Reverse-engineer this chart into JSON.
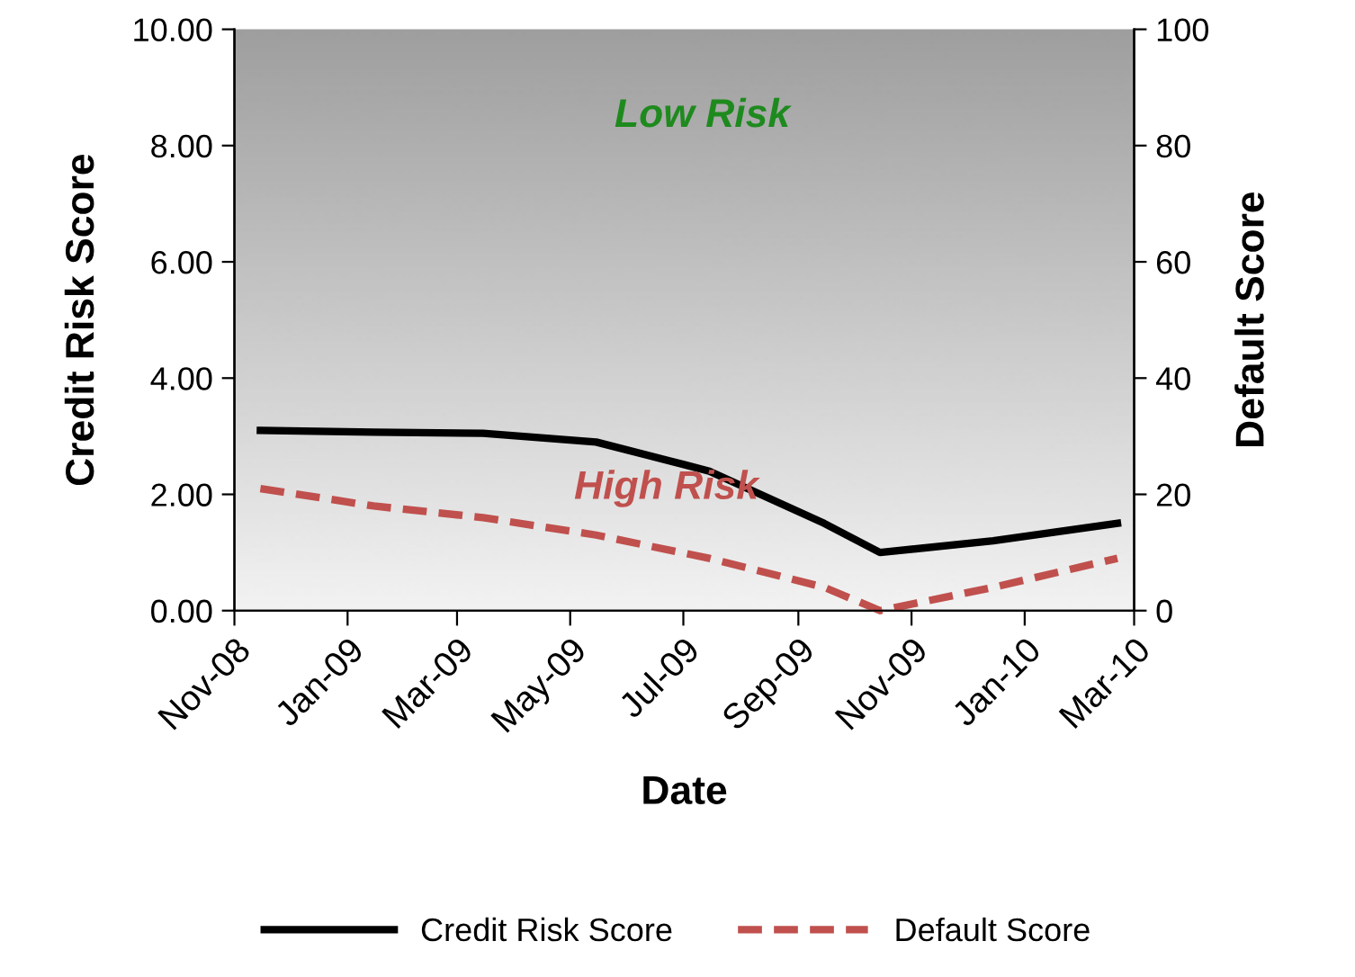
{
  "chart_data": {
    "type": "line",
    "xlabel": "Date",
    "ylabel": "Credit Risk Score",
    "y2label": "Default Score",
    "x": [
      "2008-11-15",
      "2009-01-15",
      "2009-03-15",
      "2009-05-15",
      "2009-07-15",
      "2009-09-15",
      "2009-10-15",
      "2009-12-15",
      "2010-02-20"
    ],
    "series": [
      {
        "name": "Credit Risk Score",
        "color": "#000000",
        "line_style": "solid",
        "values": [
          3.1,
          3.07,
          3.05,
          2.9,
          2.4,
          1.5,
          1.0,
          1.2,
          1.5
        ]
      },
      {
        "name": "Default Score",
        "color": "#c0504d",
        "line_style": "dashed",
        "axis": "y2",
        "values": [
          21,
          18,
          16,
          13,
          9,
          4,
          0,
          4,
          9
        ]
      }
    ],
    "xlim": [
      "2008-11-01",
      "2010-03-01"
    ],
    "xticks": [
      {
        "value": "2008-11-01",
        "label": "Nov-08"
      },
      {
        "value": "2009-01-01",
        "label": "Jan-09"
      },
      {
        "value": "2009-03-01",
        "label": "Mar-09"
      },
      {
        "value": "2009-05-01",
        "label": "May-09"
      },
      {
        "value": "2009-07-01",
        "label": "Jul-09"
      },
      {
        "value": "2009-09-01",
        "label": "Sep-09"
      },
      {
        "value": "2009-11-01",
        "label": "Nov-09"
      },
      {
        "value": "2010-01-01",
        "label": "Jan-10"
      },
      {
        "value": "2010-03-01",
        "label": "Mar-10"
      }
    ],
    "ylim": [
      0,
      10
    ],
    "yticks": [
      {
        "value": 0,
        "label": "0.00"
      },
      {
        "value": 2,
        "label": "2.00"
      },
      {
        "value": 4,
        "label": "4.00"
      },
      {
        "value": 6,
        "label": "6.00"
      },
      {
        "value": 8,
        "label": "8.00"
      },
      {
        "value": 10,
        "label": "10.00"
      }
    ],
    "y2lim": [
      0,
      100
    ],
    "y2ticks": [
      0,
      20,
      40,
      60,
      80,
      100
    ],
    "annotations": [
      "Low Risk",
      "High Risk"
    ],
    "grid": false,
    "legend": "bottom",
    "marker": "none"
  }
}
